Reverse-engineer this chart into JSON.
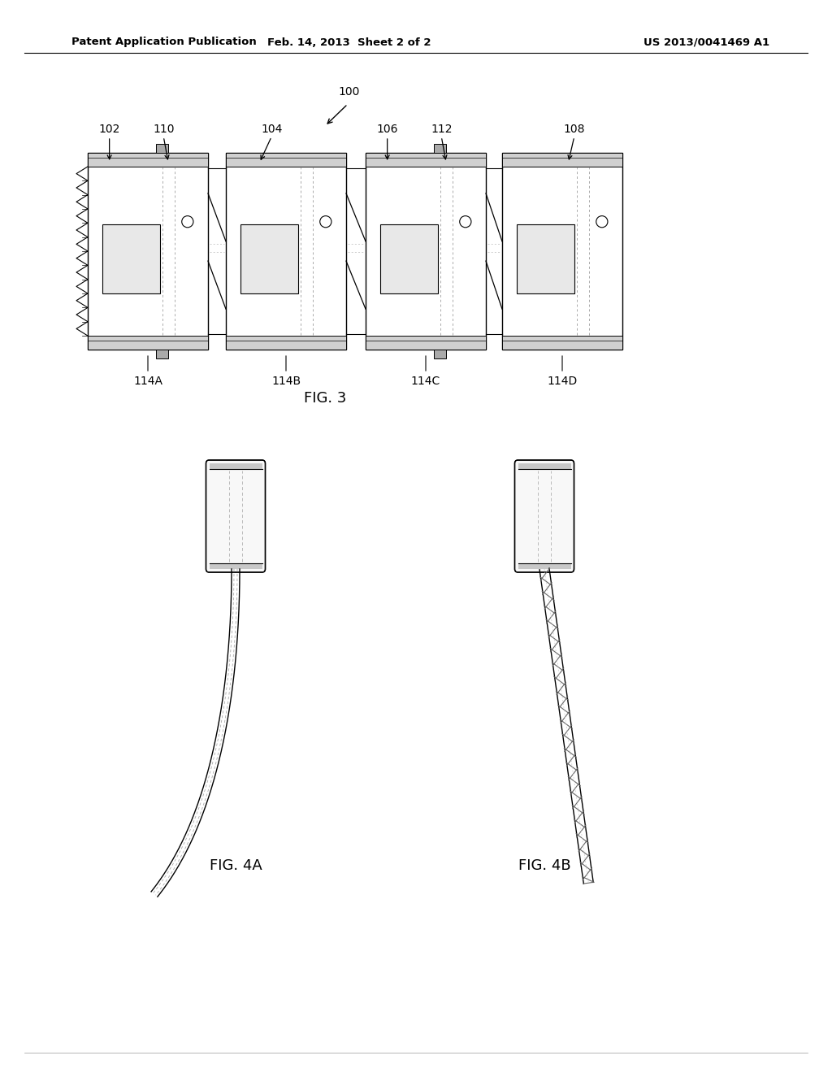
{
  "bg_color": "#ffffff",
  "header_left": "Patent Application Publication",
  "header_center": "Feb. 14, 2013  Sheet 2 of 2",
  "header_right": "US 2013/0041469 A1",
  "header_font_size": 9.5,
  "fig3_label": "FIG. 3",
  "fig4a_label": "FIG. 4A",
  "fig4b_label": "FIG. 4B",
  "ref_100": "100",
  "ref_102": "102",
  "ref_104": "104",
  "ref_106": "106",
  "ref_108": "108",
  "ref_110": "110",
  "ref_112": "112",
  "ref_114A": "114A",
  "ref_114B": "114B",
  "ref_114C": "114C",
  "ref_114D": "114D",
  "line_color": "#000000",
  "dashed_color": "#888888"
}
